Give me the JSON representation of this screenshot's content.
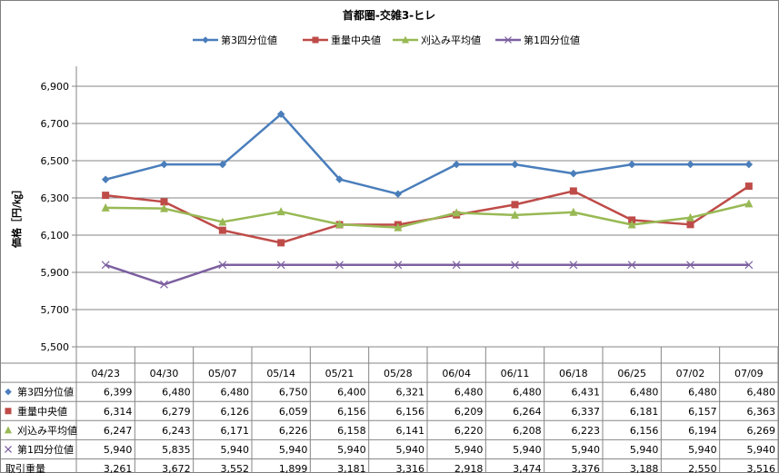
{
  "chart_data": {
    "type": "line",
    "title": "首都圏-交雑3-ヒレ",
    "ylabel": "価格［円/㎏］",
    "xlabel": "",
    "ylim": [
      5500,
      6900
    ],
    "yticks": [
      5500,
      5700,
      5900,
      6100,
      6300,
      6500,
      6700,
      6900
    ],
    "ytick_labels": [
      "5,500",
      "5,700",
      "5,900",
      "6,100",
      "6,300",
      "6,500",
      "6,700",
      "6,900"
    ],
    "grid": true,
    "legend_position": "top",
    "categories": [
      "04/23",
      "04/30",
      "05/07",
      "05/14",
      "05/21",
      "05/28",
      "06/04",
      "06/11",
      "06/18",
      "06/25",
      "07/02",
      "07/09"
    ],
    "series": [
      {
        "name": "第3四分位値",
        "color": "#4a7ebb",
        "marker": "diamond",
        "values": [
          6399,
          6480,
          6480,
          6750,
          6400,
          6321,
          6480,
          6480,
          6431,
          6480,
          6480,
          6480
        ],
        "labels": [
          "6,399",
          "6,480",
          "6,480",
          "6,750",
          "6,400",
          "6,321",
          "6,480",
          "6,480",
          "6,431",
          "6,480",
          "6,480",
          "6,480"
        ]
      },
      {
        "name": "重量中央値",
        "color": "#be4b48",
        "marker": "square",
        "values": [
          6314,
          6279,
          6126,
          6059,
          6156,
          6156,
          6209,
          6264,
          6337,
          6181,
          6157,
          6363
        ],
        "labels": [
          "6,314",
          "6,279",
          "6,126",
          "6,059",
          "6,156",
          "6,156",
          "6,209",
          "6,264",
          "6,337",
          "6,181",
          "6,157",
          "6,363"
        ]
      },
      {
        "name": "刈込み平均値",
        "color": "#98b954",
        "marker": "triangle",
        "values": [
          6247,
          6243,
          6171,
          6226,
          6158,
          6141,
          6220,
          6208,
          6223,
          6156,
          6194,
          6269
        ],
        "labels": [
          "6,247",
          "6,243",
          "6,171",
          "6,226",
          "6,158",
          "6,141",
          "6,220",
          "6,208",
          "6,223",
          "6,156",
          "6,194",
          "6,269"
        ]
      },
      {
        "name": "第1四分位値",
        "color": "#7d60a0",
        "marker": "x",
        "values": [
          5940,
          5835,
          5940,
          5940,
          5940,
          5940,
          5940,
          5940,
          5940,
          5940,
          5940,
          5940
        ],
        "labels": [
          "5,940",
          "5,835",
          "5,940",
          "5,940",
          "5,940",
          "5,940",
          "5,940",
          "5,940",
          "5,940",
          "5,940",
          "5,940",
          "5,940"
        ]
      }
    ],
    "table_extra_row": {
      "name": "取引重量",
      "values": [
        3261,
        3672,
        3552,
        1899,
        3181,
        3316,
        2918,
        3474,
        3376,
        3188,
        2550,
        3516
      ],
      "labels": [
        "3,261",
        "3,672",
        "3,552",
        "1,899",
        "3,181",
        "3,316",
        "2,918",
        "3,474",
        "3,376",
        "3,188",
        "2,550",
        "3,516"
      ]
    }
  }
}
